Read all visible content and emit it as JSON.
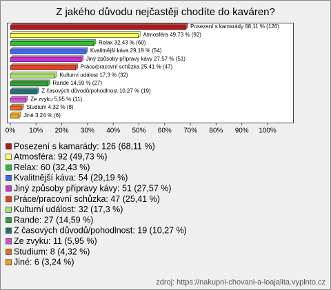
{
  "chart_data": {
    "type": "bar",
    "title": "Z jakého důvodu nejčastěji chodíte do kaváren?",
    "categories": [
      "Posezení s kamarády",
      "Atmosféra",
      "Relax",
      "Kvalitnější káva",
      "Jiný způsoby přípravy kávy",
      "Práce/pracovní schůzka",
      "Kulturní událost",
      "Rande",
      "Z časových důvodů/pohodlnost",
      "Ze zvyku",
      "Studium",
      "Jiné"
    ],
    "values": [
      68.11,
      49.73,
      32.43,
      29.19,
      27.57,
      25.41,
      17.3,
      14.59,
      10.27,
      5.95,
      4.32,
      3.24
    ],
    "value_labels": [
      "Posezení s kamarády 68,11 % (126)",
      "Atmosféra 49,73 % (92)",
      "Relax 32,43 % (60)",
      "Kvalitnější káva 29,19 % (54)",
      "Jiný způsoby přípravy kávy 27,57 % (51)",
      "Práce/pracovní schůzka 25,41 % (47)",
      "Kulturní událost 17,3 % (32)",
      "Rande 14,59 % (27)",
      "Z časových důvodů/pohodlnost 10,27 % (19)",
      "Ze zvyku 5,95 % (11)",
      "Studium 4,32 % (8)",
      "Jiné 3,24 % (6)"
    ],
    "legend": [
      "Posezení s kamarády: 126 (68,11 %)",
      "Atmosféra: 92 (49,73 %)",
      "Relax: 60 (32,43 %)",
      "Kvalitnější káva: 54 (29,19 %)",
      "Jiný způsoby přípravy kávy: 51 (27,57 %)",
      "Práce/pracovní schůzka: 47 (25,41 %)",
      "Kulturní událost: 32 (17,3 %)",
      "Rande: 27 (14,59 %)",
      "Z časových důvodů/pohodlnost: 19 (10,27 %)",
      "Ze zvyku: 11 (5,95 %)",
      "Studium: 8 (4,32 %)",
      "Jiné: 6 (3,24 %)"
    ],
    "colors": [
      "#b01818",
      "#ffff66",
      "#33bb33",
      "#4466ee",
      "#cc33cc",
      "#dd4422",
      "#aae070",
      "#33a033",
      "#227070",
      "#cc55cc",
      "#e07020",
      "#f0a020"
    ],
    "xlim": [
      0,
      110
    ],
    "xticks": [
      {
        "value": 0,
        "label": "0%"
      },
      {
        "value": 10,
        "label": "10%"
      },
      {
        "value": 20,
        "label": "20%"
      },
      {
        "value": 30,
        "label": "30%"
      },
      {
        "value": 40,
        "label": "40%"
      },
      {
        "value": 50,
        "label": "50%"
      },
      {
        "value": 60,
        "label": "60%"
      },
      {
        "value": 70,
        "label": "70%"
      },
      {
        "value": 80,
        "label": "80%"
      },
      {
        "value": 90,
        "label": "90%"
      },
      {
        "value": 100,
        "label": "100%"
      }
    ],
    "source": "zdroj: https://nakupni-chovani-a-loajalita.vyplnto.cz"
  }
}
